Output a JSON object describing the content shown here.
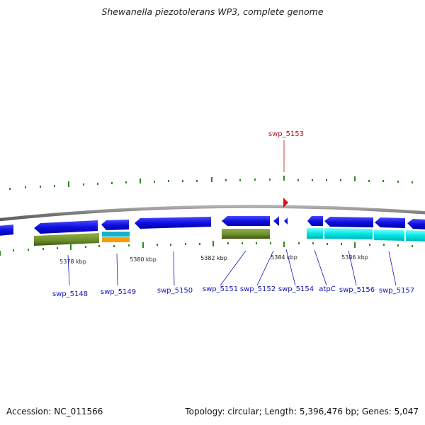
{
  "header": {
    "title": "Shewanella piezotolerans WP3, complete genome"
  },
  "footer": {
    "accession": "Accession: NC_011566",
    "summary": "Topology: circular; Length: 5,396,476 bp; Genes: 5,047"
  },
  "map": {
    "selected_gene": "swp_5153",
    "scale_labels": [
      "5378 kbp",
      "5380 kbp",
      "5382 kbp",
      "5384 kbp",
      "5386 kbp"
    ],
    "gene_labels": [
      "swp_5148",
      "swp_5149",
      "swp_5150",
      "swp_5151",
      "swp_5152",
      "swp_5154",
      "atpC",
      "swp_5156",
      "swp_5157"
    ],
    "colors": {
      "cds": "#1010e0",
      "cds_cyan": "#00e6e6",
      "cog_olive": "#6b8c2a",
      "cog_orange": "#ff9900",
      "cog_teal": "#14b4c8",
      "backbone": "#888888",
      "tick": "#2a8a1a",
      "marker": "#e01010"
    }
  }
}
